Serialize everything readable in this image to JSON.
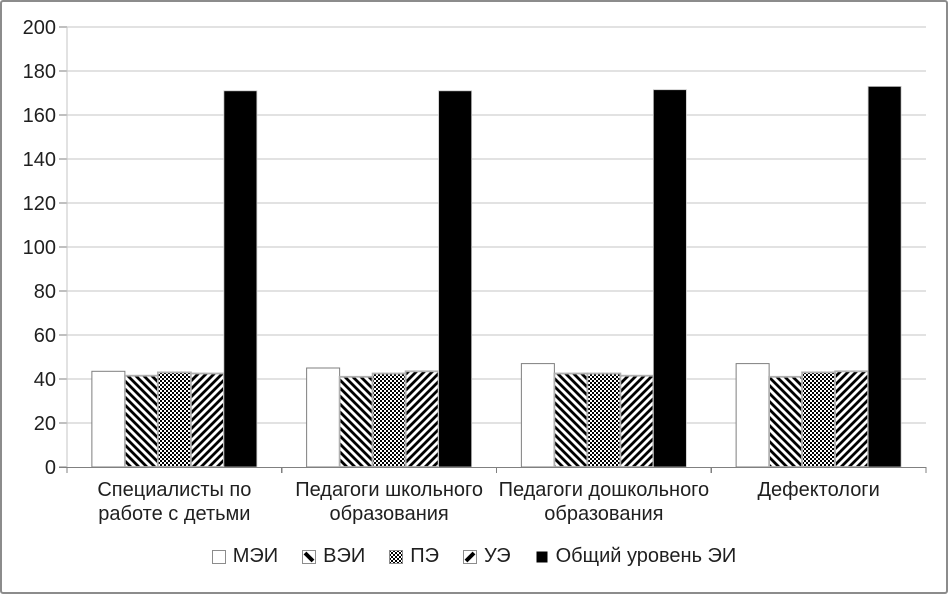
{
  "chart_data": {
    "type": "bar",
    "title": "",
    "xlabel": "",
    "ylabel": "",
    "categories": [
      "Специалисты по работе с детьми",
      "Педагоги школьного образования",
      "Педагоги дошкольного образования",
      "Дефектологи"
    ],
    "series": [
      {
        "name": "МЭИ",
        "pattern": "white",
        "values": [
          43.5,
          45,
          47,
          47
        ]
      },
      {
        "name": "ВЭИ",
        "pattern": "diagonal-down",
        "values": [
          41.5,
          41,
          42.5,
          41
        ]
      },
      {
        "name": "ПЭ",
        "pattern": "checker",
        "values": [
          43,
          42.5,
          42.5,
          43
        ]
      },
      {
        "name": "УЭ",
        "pattern": "diagonal-up",
        "values": [
          42.5,
          43.5,
          41.5,
          43.5
        ]
      },
      {
        "name": "Общий уровень ЭИ",
        "pattern": "solid-black",
        "values": [
          171,
          171,
          171.5,
          173
        ]
      }
    ],
    "ylim": [
      0,
      200
    ],
    "yticks": [
      0,
      20,
      40,
      60,
      80,
      100,
      120,
      140,
      160,
      180,
      200
    ],
    "grid": true,
    "legend_position": "bottom",
    "colors": {
      "bar_fill_black": "#000000",
      "bar_fill_white": "#ffffff",
      "pattern_ink": "#000000",
      "pattern_bar_outline": "#b0b0b0",
      "white_bar_outline": "#7f7f7f",
      "black_bar_outline": "#c9c9c9",
      "gridline": "#c6c6c6",
      "axis": "#808080",
      "text": "#1f1f1f"
    }
  }
}
